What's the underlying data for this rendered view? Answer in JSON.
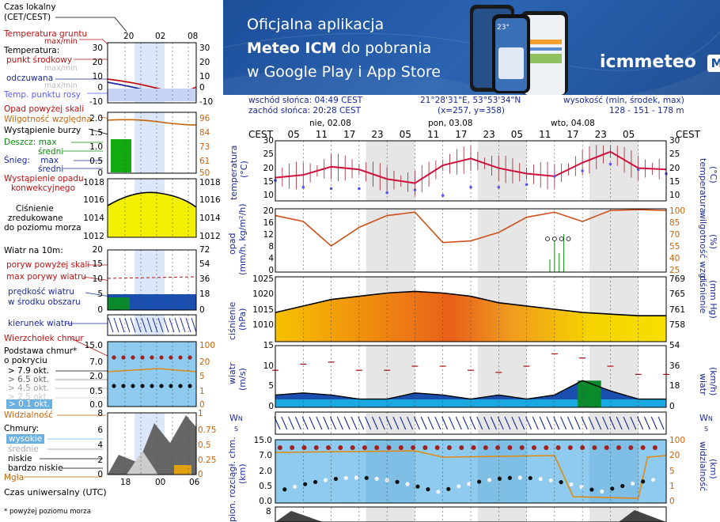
{
  "banner": {
    "line1": "Oficjalna aplikacja",
    "line2_bold": "Meteo ICM",
    "line2_rest": " do pobrania",
    "line3": "w Google Play i App Store",
    "brand": "icmmeteo",
    "brand_badge": "M°",
    "phone_temp": "23°"
  },
  "legend": {
    "czas_lokalny": "Czas lokalny",
    "czas_lokalny2": "(CET/CEST)",
    "temp_gruntu": "Temperatura gruntu",
    "temp_gruntu2": "max/min",
    "temperatura": "Temperatura:",
    "punkt_srodkowy": "punkt środkowy",
    "max_min_light": "max/min",
    "odczuwana": "odczuwana",
    "max_min_light2": "max/min",
    "punkt_rosy": "Temp. punktu rosy",
    "opad_pow": "Opad powyżej skali",
    "wilgotnosc": "Wilgotność względna",
    "burza": "Wystąpienie burzy",
    "deszcz": "Deszcz:",
    "deszcz_max": "max",
    "sredni": "średni",
    "snieg": "Śnieg:",
    "snieg_max": "max",
    "snieg_sredni": "średni",
    "wyst_opadu": "Wystąpienie opadu",
    "konwekcyjnego": "konwekcyjnego",
    "cisnienie1": "Ciśnienie",
    "cisnienie2": "zredukowane",
    "cisnienie3": "do poziomu morza",
    "wiatr10": "Wiatr na 10m:",
    "poryw_pow": "poryw powyżej skali",
    "max_porywy": "max porywy wiatru",
    "predkosc": "prędkość wiatru",
    "w_srodku": "w środku obszaru",
    "kierunek": "kierunek wiatru",
    "wierzcholek": "Wierzchołek chmur",
    "podstawa": "Podstawa chmur*",
    "o_pokryciu": "o pokryciu",
    "okt79": "> 7.9 okt.",
    "okt65": "> 6.5 okt.",
    "okt45": "> 4.5 okt.",
    "okt25": "> 2.5 okt.",
    "okt01": "> 0.1 okt.",
    "widzialnosc": "Widzialność",
    "chmury": "Chmury:",
    "wysokie": "wysokie",
    "srednie": "średnie",
    "niskie": "niskie",
    "bardzo_niskie": "bardzo niskie",
    "mgla": "Mgła",
    "czas_uniwersalny": "Czas uniwersalny (UTC)",
    "footnote": "* powyżej poziomu morza",
    "top_ticks": [
      "20",
      "02",
      "08"
    ],
    "bottom_ticks": [
      "18",
      "00",
      "06"
    ]
  },
  "header": {
    "sunrise": "wschód słońca: 04:49 CEST",
    "sunset": "zachód słońca: 20:28 CEST",
    "coords": "21°28'31\"E, 53°53'34\"N",
    "grid": "(x=257,  y=358)",
    "elev_label": "wysokość (min, środek, max)",
    "elev_vals": "128 - 151 - 178 m",
    "days": [
      "nie, 02.08",
      "pon, 03.08",
      "wto, 04.08"
    ],
    "cest": "CEST",
    "hours": [
      "05",
      "11",
      "17",
      "23",
      "05",
      "11",
      "17",
      "23",
      "05",
      "11",
      "17",
      "23",
      "05"
    ]
  },
  "axes": {
    "temp_left": "temperatura\n(°C)",
    "temp_left_a": "temperatura",
    "temp_left_b": "(°C)",
    "temp_right_a": "(°C)",
    "temp_right_b": "temperatura",
    "opad_a": "opad",
    "opad_b": "(mm/h, kg/m²/h)",
    "wilg_a": "(%)",
    "wilg_b": "wilgotność wzgl.",
    "cisn_a": "ciśnienie",
    "cisn_b": "(hPa)",
    "cisn_r_a": "(mm Hg)",
    "cisn_r_b": "ciśnienie",
    "wiatr_a": "wiatr",
    "wiatr_b": "(m/s)",
    "wiatr_r_a": "(km/h)",
    "wiatr_r_b": "wiatr",
    "chmur_a": "pion. rozciągł. chm.",
    "chmur_b": "(km)",
    "widz_a": "(km)",
    "widz_b": "widzialność",
    "dir_label": "W",
    "dir_n": "N",
    "dir_s": "S",
    "dir_e": "E",
    "bottom_tick": "8"
  },
  "left_scales": {
    "temp_l": [
      "30",
      "20",
      "10",
      "0",
      "-10"
    ],
    "temp_r": [
      "30",
      "20",
      "10",
      "0",
      "-10"
    ],
    "opad_l": [
      "2.0",
      "1.5",
      "1.0",
      "0.5",
      "0"
    ],
    "opad_r": [
      "96",
      "84",
      "73",
      "61",
      "50"
    ],
    "cisn_l": [
      "1018",
      "1016",
      "1014",
      "1012"
    ],
    "cisn_r": [
      "1018",
      "1016",
      "1014",
      "1012"
    ],
    "wiatr_l": [
      "20",
      "15",
      "10",
      "5",
      "0"
    ],
    "wiatr_r": [
      "72",
      "54",
      "36",
      "18",
      "0"
    ],
    "chm_l": [
      "15.0",
      "7.0",
      "2.0",
      "0.5",
      "0.0"
    ],
    "chm_r": [
      "100",
      "20",
      "5",
      "1",
      "0"
    ],
    "cl_l": [
      "8",
      "6",
      "4",
      "2",
      "0"
    ],
    "cl_r": [
      "1",
      "0.75",
      "0.5",
      "0.25",
      "0"
    ]
  },
  "right_scales": {
    "temp_l": [
      "30",
      "25",
      "20",
      "15",
      "10"
    ],
    "temp_r": [
      "30",
      "25",
      "20",
      "15",
      "10"
    ],
    "opad_l": [
      "20",
      "16",
      "12",
      "8",
      "4",
      "0"
    ],
    "opad_r": [
      "100",
      "85",
      "70",
      "55",
      "40",
      "25"
    ],
    "cisn_l": [
      "1025",
      "1020",
      "1015",
      "1010"
    ],
    "cisn_r": [
      "769",
      "765",
      "761",
      "758"
    ],
    "wiatr_l": [
      "15",
      "10",
      "5",
      "0"
    ],
    "wiatr_r": [
      "54",
      "36",
      "18",
      "0"
    ],
    "chm_l": [
      "15.0",
      "7.0",
      "2.0",
      "0.5",
      "0.0"
    ],
    "chm_r": [
      "100",
      "20",
      "5",
      "1",
      "0"
    ]
  },
  "chart_data": [
    {
      "type": "line",
      "name": "temperature-main",
      "ylabel": "temperatura (°C)",
      "ylim": [
        8,
        30
      ],
      "x_hours_from_start": [
        0,
        6,
        12,
        18,
        24,
        30,
        36,
        42,
        48,
        54,
        60,
        66,
        72,
        78,
        84
      ],
      "series": [
        {
          "name": "punkt środkowy",
          "color": "#d0103a",
          "values": [
            16.5,
            17.5,
            20.5,
            19.5,
            16,
            14.5,
            21,
            23.5,
            20,
            18,
            17,
            22,
            26,
            20,
            19.5
          ]
        },
        {
          "name": "temp. punktu rosy",
          "color": "#5a5aff",
          "values": [
            15.5,
            13,
            12.5,
            12.5,
            11,
            12,
            10,
            13,
            13,
            14,
            17,
            19,
            21.5,
            19.5,
            18
          ]
        }
      ]
    },
    {
      "type": "area",
      "name": "pressure",
      "ylabel": "ciśnienie (hPa)",
      "ylim": [
        1007,
        1027
      ],
      "x_hours_from_start": [
        0,
        6,
        12,
        18,
        24,
        30,
        36,
        42,
        48,
        54,
        60,
        66,
        72,
        78,
        84
      ],
      "series": [
        {
          "name": "ciśnienie",
          "color": "#000000",
          "values": [
            1016,
            1018,
            1020,
            1021,
            1022,
            1022.5,
            1022,
            1021,
            1019,
            1018,
            1017,
            1016,
            1015.5,
            1015,
            1015
          ]
        }
      ]
    },
    {
      "type": "line",
      "name": "humidity",
      "ylabel": "wilgotność wzgl. (%)",
      "ylim": [
        25,
        100
      ],
      "x_hours_from_start": [
        0,
        6,
        12,
        18,
        24,
        30,
        36,
        42,
        48,
        54,
        60,
        66,
        72,
        78,
        84
      ],
      "series": [
        {
          "name": "wilgotność względna",
          "color": "#d0501a",
          "values": [
            92,
            85,
            56,
            78,
            92,
            96,
            60,
            62,
            72,
            90,
            96,
            85,
            98,
            99,
            98
          ]
        }
      ]
    },
    {
      "type": "area",
      "name": "wind",
      "ylabel": "wiatr (m/s)",
      "ylim": [
        0,
        15
      ],
      "x_hours_from_start": [
        0,
        6,
        12,
        18,
        24,
        30,
        36,
        42,
        48,
        54,
        60,
        66,
        72,
        78,
        84
      ],
      "series": [
        {
          "name": "prędkość wiatru",
          "color": "#1060d0",
          "values": [
            3,
            3.5,
            3,
            2,
            2,
            3.5,
            3,
            2,
            3,
            2,
            3,
            6.5,
            4,
            2,
            2
          ]
        },
        {
          "name": "max porywy wiatru",
          "color": "#b01010",
          "values": [
            9,
            10.5,
            11,
            9,
            9,
            10,
            10,
            9,
            8.5,
            10,
            13,
            12,
            10,
            8,
            8
          ]
        }
      ]
    }
  ]
}
